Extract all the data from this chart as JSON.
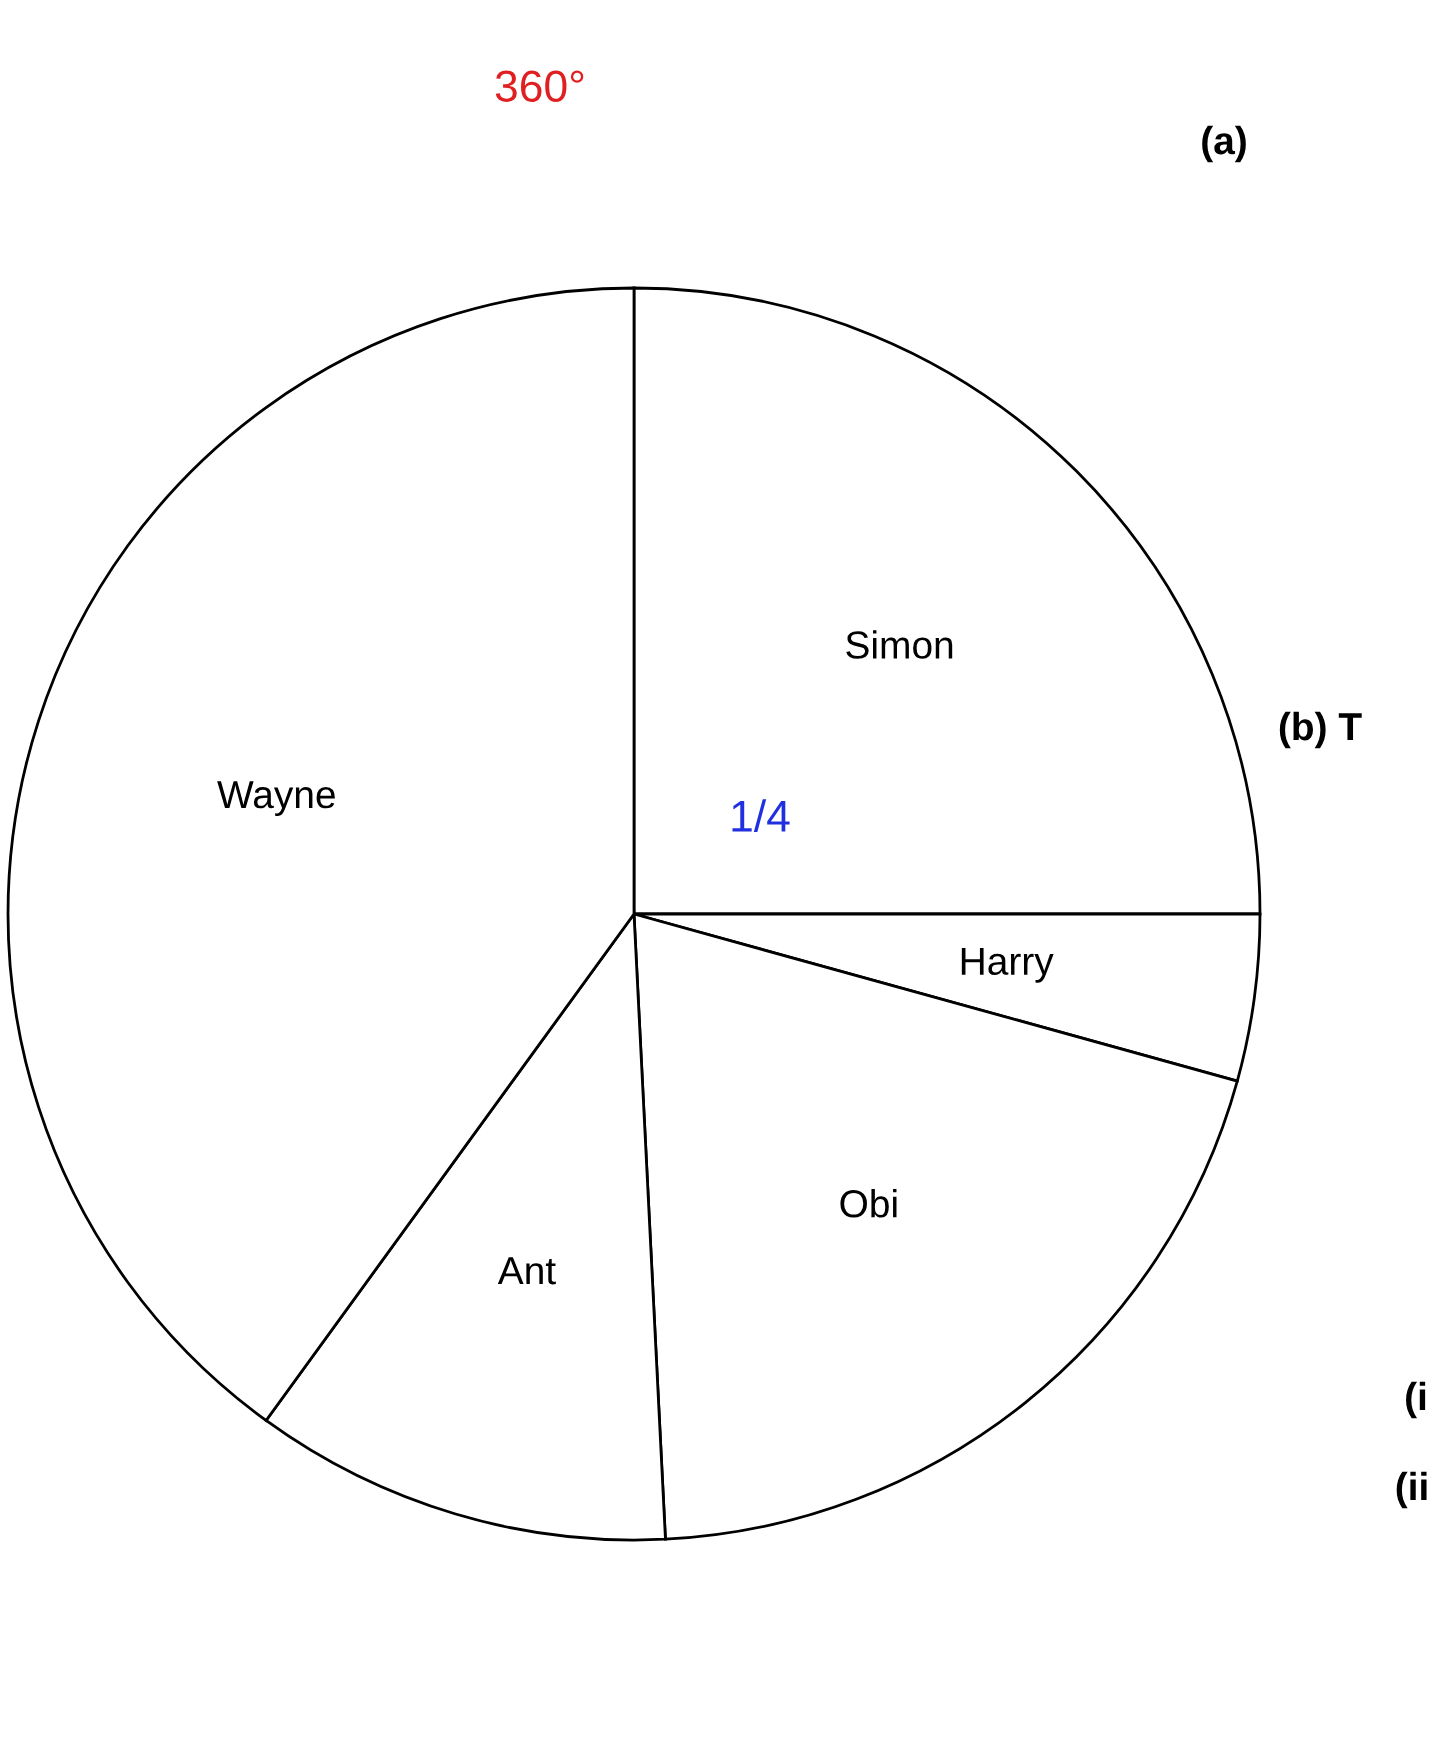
{
  "chart_data": {
    "type": "pie",
    "categories": [
      "Simon",
      "Harry",
      "Obi",
      "Ant",
      "Wayne"
    ],
    "values": [
      25,
      4.3,
      19.9,
      10.8,
      40
    ],
    "colors": [
      "#ffffff",
      "#ffffff",
      "#ffffff",
      "#ffffff",
      "#ffffff"
    ],
    "annotations": [
      "360°",
      "1/4",
      "(a)",
      "(b) T",
      "(i",
      "(ii"
    ]
  }
}
